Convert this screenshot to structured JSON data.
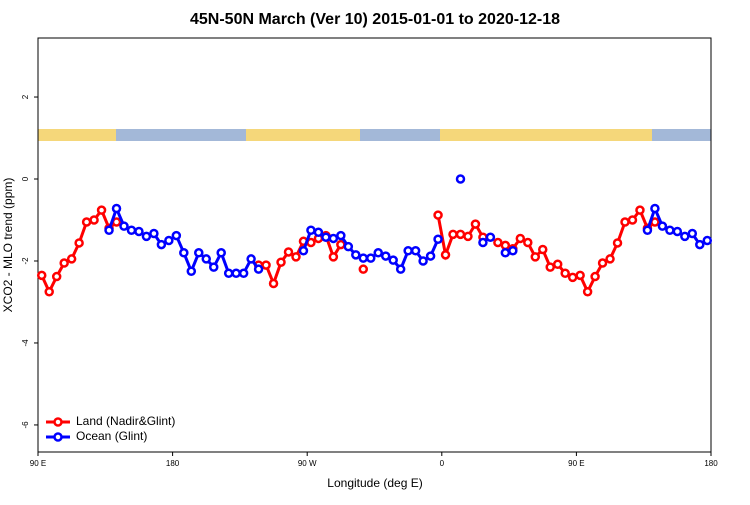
{
  "chart_data": {
    "type": "line",
    "title": "45N-50N March (Ver 10)   2015-01-01 to 2020-12-18",
    "x_label": "Longitude (deg E)",
    "y_label": "XCO2 - MLO trend (ppm)",
    "xlim": [
      90,
      540
    ],
    "ylim": [
      -6.66,
      3.44
    ],
    "xticks": [
      {
        "value": 90,
        "label": "90 E"
      },
      180,
      {
        "value": 270,
        "label": "90 W"
      },
      {
        "value": 360,
        "label": "0"
      },
      {
        "value": 450,
        "label": "90 E"
      },
      {
        "value": 540,
        "label": "180"
      }
    ],
    "yticks": [
      -6,
      -4,
      -2,
      0,
      2
    ],
    "legend": "bottom-left",
    "x": [
      92.5,
      97.5,
      102.5,
      107.5,
      112.5,
      117.5,
      122.5,
      127.5,
      132.5,
      137.5,
      142.5,
      147.5,
      152.5,
      157.5,
      162.5,
      167.5,
      172.5,
      177.5,
      182.5,
      187.5,
      192.5,
      197.5,
      202.5,
      207.5,
      212.5,
      217.5,
      222.5,
      227.5,
      232.5,
      237.5,
      242.5,
      247.5,
      252.5,
      257.5,
      262.5,
      267.5,
      272.5,
      277.5,
      282.5,
      287.5,
      292.5,
      297.5,
      302.5,
      307.5,
      312.5,
      317.5,
      322.5,
      327.5,
      332.5,
      337.5,
      342.5,
      347.5,
      352.5,
      357.5,
      362.5,
      367.5,
      372.5,
      377.5,
      382.5,
      387.5,
      392.5,
      397.5,
      402.5,
      407.5,
      412.5,
      417.5,
      422.5,
      427.5,
      432.5,
      437.5,
      442.5,
      447.5,
      452.5,
      457.5,
      462.5,
      467.5,
      472.5,
      477.5,
      482.5,
      487.5,
      492.5,
      497.5,
      502.5,
      507.5,
      512.5,
      517.5,
      522.5,
      527.5,
      532.5,
      537.5
    ],
    "series": [
      {
        "name": "Land (Nadir&Glint)",
        "color": "#ff0000",
        "values": [
          -2.35,
          -2.75,
          -2.38,
          -2.05,
          -1.95,
          -1.56,
          -1.05,
          -1.0,
          -0.76,
          -1.2,
          -1.05,
          null,
          null,
          null,
          null,
          null,
          null,
          null,
          null,
          null,
          null,
          null,
          null,
          null,
          null,
          null,
          null,
          null,
          null,
          -2.1,
          -2.1,
          -2.55,
          -2.03,
          -1.78,
          -1.9,
          -1.52,
          -1.55,
          -1.45,
          -1.38,
          -1.9,
          -1.6,
          null,
          null,
          -2.2,
          null,
          null,
          null,
          null,
          null,
          null,
          null,
          null,
          null,
          -0.88,
          -1.85,
          -1.35,
          -1.35,
          -1.4,
          -1.1,
          -1.42,
          null,
          -1.55,
          -1.62,
          -1.7,
          -1.45,
          -1.55,
          -1.9,
          -1.72,
          -2.15,
          -2.08,
          -2.3,
          -2.4,
          -2.35,
          -2.75,
          -2.38,
          -2.05,
          -1.95,
          -1.56,
          -1.05,
          -1.0,
          -0.76,
          -1.2,
          -1.05,
          null,
          null,
          null,
          null,
          null,
          null,
          null
        ]
      },
      {
        "name": "Ocean (Glint)",
        "color": "#0000ff",
        "values": [
          null,
          null,
          null,
          null,
          null,
          null,
          null,
          null,
          null,
          -1.25,
          -0.72,
          -1.15,
          -1.25,
          -1.28,
          -1.4,
          -1.33,
          -1.6,
          -1.5,
          -1.38,
          -1.8,
          -2.25,
          -1.8,
          -1.95,
          -2.15,
          -1.8,
          -2.3,
          -2.3,
          -2.3,
          -1.95,
          -2.2,
          null,
          null,
          null,
          null,
          null,
          -1.75,
          -1.25,
          -1.3,
          -1.42,
          -1.45,
          -1.38,
          -1.65,
          -1.85,
          -1.93,
          -1.93,
          -1.8,
          -1.88,
          -1.98,
          -2.2,
          -1.75,
          -1.75,
          -2.0,
          -1.88,
          -1.47,
          null,
          null,
          0.0,
          null,
          null,
          -1.55,
          -1.42,
          null,
          -1.8,
          -1.75,
          null,
          null,
          null,
          null,
          null,
          null,
          null,
          null,
          null,
          null,
          null,
          null,
          null,
          null,
          null,
          null,
          null,
          -1.25,
          -0.72,
          -1.15,
          -1.25,
          -1.28,
          -1.4,
          -1.33,
          -1.6,
          -1.5
        ]
      }
    ]
  }
}
